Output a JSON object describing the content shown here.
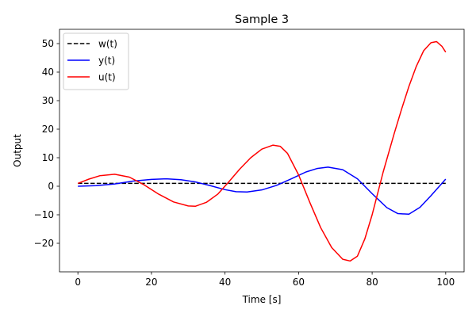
{
  "chart_data": {
    "type": "line",
    "title": "Sample 3",
    "xlabel": "Time [s]",
    "ylabel": "Output",
    "xlim": [
      -5,
      105
    ],
    "ylim": [
      -30,
      55
    ],
    "xticks": [
      0,
      20,
      40,
      60,
      80,
      100
    ],
    "yticks": [
      -20,
      -10,
      0,
      10,
      20,
      30,
      40,
      50
    ],
    "xtick_labels": [
      "0",
      "20",
      "40",
      "60",
      "80",
      "100"
    ],
    "ytick_labels": [
      "−20",
      "−10",
      "0",
      "10",
      "20",
      "30",
      "40",
      "50"
    ],
    "grid": false,
    "legend_position": "upper-left",
    "series": [
      {
        "name": "w(t)",
        "color": "#000000",
        "style": "dashed",
        "x": [
          0,
          100
        ],
        "y": [
          1,
          1
        ]
      },
      {
        "name": "y(t)",
        "color": "#0000ff",
        "style": "solid",
        "x": [
          0,
          5,
          10,
          15,
          20,
          24,
          28,
          32,
          36,
          40,
          43,
          46,
          50,
          54,
          58,
          62,
          65,
          68,
          72,
          76,
          80,
          84,
          87,
          90,
          93,
          96,
          100
        ],
        "y": [
          0,
          0.2,
          0.8,
          1.8,
          2.4,
          2.6,
          2.3,
          1.5,
          0.2,
          -1.2,
          -1.9,
          -2.0,
          -1.3,
          0.3,
          2.6,
          5.0,
          6.2,
          6.7,
          5.8,
          2.6,
          -2.6,
          -7.5,
          -9.6,
          -9.8,
          -7.4,
          -3.3,
          2.5
        ]
      },
      {
        "name": "u(t)",
        "color": "#ff0000",
        "style": "solid",
        "x": [
          0,
          3,
          6,
          10,
          14,
          18,
          22,
          26,
          30,
          32,
          35,
          38,
          41,
          44,
          47,
          50,
          53,
          55,
          57,
          60,
          63,
          66,
          69,
          72,
          74,
          76,
          78,
          80,
          83,
          86,
          88,
          90,
          92,
          94,
          96,
          97.5,
          99,
          100
        ],
        "y": [
          1,
          2.5,
          3.7,
          4.2,
          3.2,
          0.5,
          -2.8,
          -5.5,
          -6.9,
          -7.0,
          -5.6,
          -2.8,
          1.5,
          6.0,
          10.0,
          13.0,
          14.4,
          14.0,
          11.5,
          4.0,
          -5.5,
          -14.5,
          -21.5,
          -25.6,
          -26.2,
          -24.5,
          -18.5,
          -10.0,
          5.0,
          18.5,
          27.0,
          35.0,
          42.0,
          47.5,
          50.3,
          50.7,
          49.0,
          47.0
        ]
      }
    ]
  }
}
